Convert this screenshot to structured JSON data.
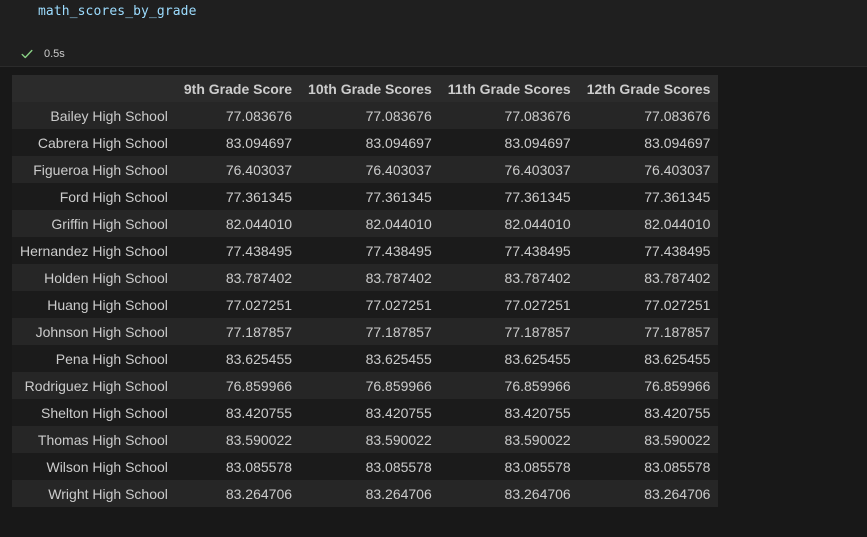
{
  "cell": {
    "code": "math_scores_by_grade",
    "status_time": "0.5s"
  },
  "table": {
    "columns": [
      "",
      "9th Grade Score",
      "10th Grade Scores",
      "11th Grade Scores",
      "12th Grade Scores"
    ],
    "rows": [
      [
        "Bailey High School",
        "77.083676",
        "77.083676",
        "77.083676",
        "77.083676"
      ],
      [
        "Cabrera High School",
        "83.094697",
        "83.094697",
        "83.094697",
        "83.094697"
      ],
      [
        "Figueroa High School",
        "76.403037",
        "76.403037",
        "76.403037",
        "76.403037"
      ],
      [
        "Ford High School",
        "77.361345",
        "77.361345",
        "77.361345",
        "77.361345"
      ],
      [
        "Griffin High School",
        "82.044010",
        "82.044010",
        "82.044010",
        "82.044010"
      ],
      [
        "Hernandez High School",
        "77.438495",
        "77.438495",
        "77.438495",
        "77.438495"
      ],
      [
        "Holden High School",
        "83.787402",
        "83.787402",
        "83.787402",
        "83.787402"
      ],
      [
        "Huang High School",
        "77.027251",
        "77.027251",
        "77.027251",
        "77.027251"
      ],
      [
        "Johnson High School",
        "77.187857",
        "77.187857",
        "77.187857",
        "77.187857"
      ],
      [
        "Pena High School",
        "83.625455",
        "83.625455",
        "83.625455",
        "83.625455"
      ],
      [
        "Rodriguez High School",
        "76.859966",
        "76.859966",
        "76.859966",
        "76.859966"
      ],
      [
        "Shelton High School",
        "83.420755",
        "83.420755",
        "83.420755",
        "83.420755"
      ],
      [
        "Thomas High School",
        "83.590022",
        "83.590022",
        "83.590022",
        "83.590022"
      ],
      [
        "Wilson High School",
        "83.085578",
        "83.085578",
        "83.085578",
        "83.085578"
      ],
      [
        "Wright High School",
        "83.264706",
        "83.264706",
        "83.264706",
        "83.264706"
      ]
    ]
  },
  "colors": {
    "success_check": "#89d185",
    "code_variable": "#9cdcfe"
  },
  "icons": {
    "status": "check-icon"
  }
}
